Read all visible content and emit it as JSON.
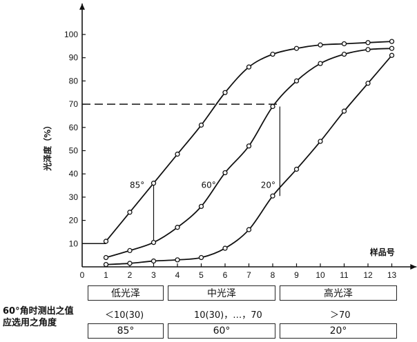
{
  "chart_data": {
    "type": "line",
    "ylabel": "光泽度（%）",
    "xlabel": "样品号",
    "x": [
      1,
      2,
      3,
      4,
      5,
      6,
      7,
      8,
      9,
      10,
      11,
      12,
      13
    ],
    "xticks": [
      "0",
      "1",
      "2",
      "3",
      "4",
      "5",
      "6",
      "7",
      "8",
      "9",
      "10",
      "11",
      "12",
      "13"
    ],
    "yticks": [
      "10",
      "20",
      "30",
      "40",
      "50",
      "60",
      "70",
      "80",
      "90",
      "100"
    ],
    "xlim": [
      0,
      13.4
    ],
    "ylim": [
      0,
      105
    ],
    "grid": false,
    "series": [
      {
        "name": "85°",
        "values": [
          11,
          23.5,
          36,
          48.5,
          61,
          75,
          86,
          91.5,
          94,
          95.5,
          96,
          96.5,
          97
        ]
      },
      {
        "name": "60°",
        "values": [
          4,
          7,
          10.5,
          17,
          26,
          40.5,
          52,
          69,
          80,
          87.5,
          91.5,
          93.5,
          94
        ]
      },
      {
        "name": "20°",
        "values": [
          1,
          1.5,
          2.5,
          3,
          4,
          8,
          16,
          30.5,
          42,
          54,
          67,
          79,
          91
        ]
      }
    ],
    "reference_lines": [
      {
        "type": "horizontal",
        "y": 70,
        "style": "dashed"
      },
      {
        "type": "horizontal",
        "y": 10,
        "x_to": 1,
        "style": "solid"
      },
      {
        "type": "vertical",
        "x": 3,
        "y_from": 10.5,
        "y_to": 36
      },
      {
        "type": "vertical",
        "x": 8.3,
        "y_from": 30.5,
        "y_to": 69
      }
    ],
    "series_labels": [
      {
        "text": "85°",
        "x": 2.0,
        "y": 34
      },
      {
        "text": "60°",
        "x": 5.0,
        "y": 34
      },
      {
        "text": "20°",
        "x": 7.5,
        "y": 34
      }
    ]
  },
  "table": {
    "categories": [
      "低光泽",
      "中光泽",
      "高光泽"
    ],
    "row_title_line1": "60°角时测出之值",
    "row_title_line2": "应选用之角度",
    "measured_values": [
      "＜10(30)",
      "10(30)，…，70",
      "＞70"
    ],
    "angles": [
      "85°",
      "60°",
      "20°"
    ]
  }
}
